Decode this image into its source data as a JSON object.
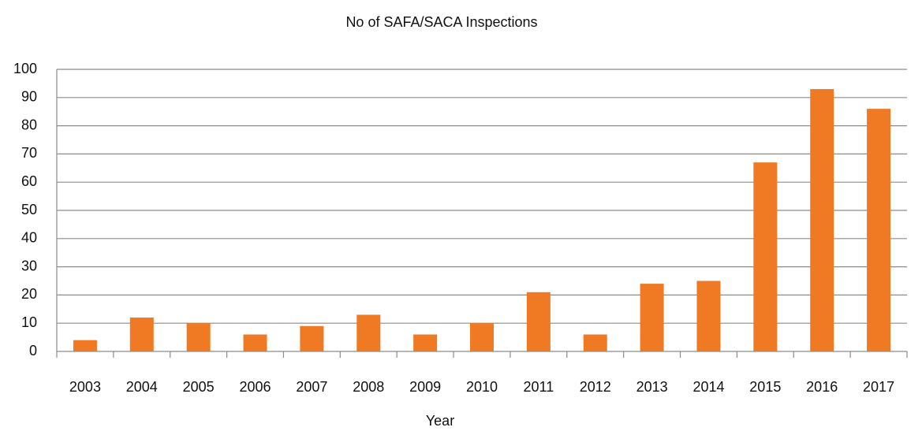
{
  "chart_data": {
    "type": "bar",
    "title": "No of SAFA/SACA Inspections",
    "x_label": "Year",
    "categories": [
      "2003",
      "2004",
      "2005",
      "2006",
      "2007",
      "2008",
      "2009",
      "2010",
      "2011",
      "2012",
      "2013",
      "2014",
      "2015",
      "2016",
      "2017"
    ],
    "values": [
      4,
      12,
      10,
      6,
      9,
      13,
      6,
      10,
      21,
      6,
      24,
      25,
      67,
      93,
      86
    ],
    "color": "#f07a24",
    "ylim": [
      0,
      100
    ],
    "yticks": [
      0,
      10,
      20,
      30,
      40,
      50,
      60,
      70,
      80,
      90,
      100
    ],
    "grid": true
  }
}
